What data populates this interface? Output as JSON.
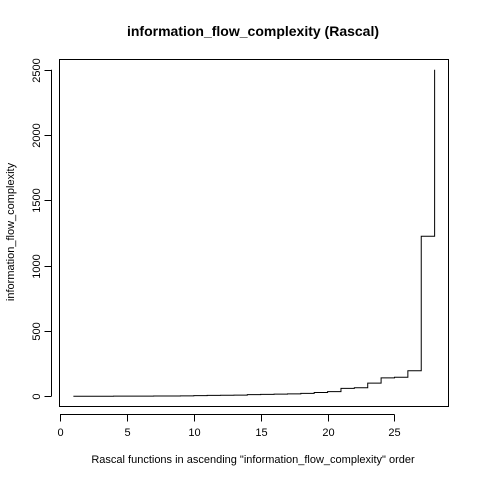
{
  "chart_data": {
    "type": "line",
    "style": "step",
    "title": "information_flow_complexity (Rascal)",
    "xlabel": "Rascal functions in ascending \"information_flow_complexity\" order",
    "ylabel": "information_flow_complexity",
    "x_ticks": [
      0,
      5,
      10,
      15,
      20,
      25
    ],
    "y_ticks": [
      0,
      500,
      1000,
      1500,
      2000,
      2500
    ],
    "xlim": [
      0,
      29
    ],
    "ylim": [
      -75,
      2575
    ],
    "grid": false,
    "x": [
      1,
      2,
      3,
      4,
      5,
      6,
      7,
      8,
      9,
      10,
      11,
      12,
      13,
      14,
      15,
      16,
      17,
      18,
      19,
      20,
      21,
      22,
      23,
      24,
      25,
      26,
      27,
      28
    ],
    "y": [
      0,
      0,
      0,
      1,
      1,
      1,
      2,
      2,
      3,
      4,
      6,
      7,
      8,
      12,
      14,
      16,
      18,
      22,
      28,
      35,
      60,
      65,
      100,
      140,
      145,
      195,
      1225,
      2500
    ]
  }
}
